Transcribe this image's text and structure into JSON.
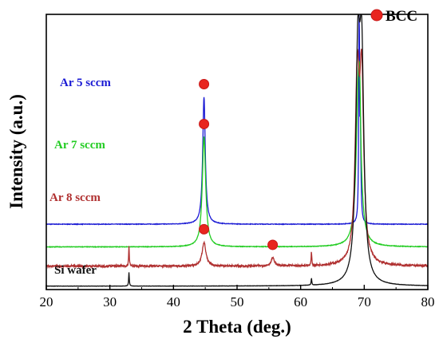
{
  "chart_data": {
    "type": "line",
    "title": "",
    "xlabel": "2 Theta (deg.)",
    "ylabel": "Intensity (a.u.)",
    "xlim": [
      20,
      80
    ],
    "xticks": [
      "20",
      "30",
      "40",
      "50",
      "60",
      "70",
      "80"
    ],
    "y_ticks_shown": false,
    "grid": false,
    "legend": {
      "marker": "red-circle",
      "label": "BCC",
      "placement": "top-right"
    },
    "colors": {
      "marker": "#e8251f",
      "marker_edge": "#c81818"
    },
    "series": [
      {
        "name": "Ar 5 sccm",
        "color": "#1a1ad4",
        "baseline": 0.95,
        "noise": 0.004,
        "peaks": [
          {
            "x": 44.8,
            "h": 1.85,
            "w": 0.24
          },
          {
            "x": 69.2,
            "h": 3.3,
            "w": 0.07
          },
          {
            "x": 69.4,
            "h": 1.2,
            "w": 0.1
          }
        ],
        "bcc_markers": [
          44.8
        ]
      },
      {
        "name": "Ar 7 sccm",
        "color": "#22cc22",
        "baseline": 0.62,
        "noise": 0.004,
        "peaks": [
          {
            "x": 44.8,
            "h": 1.6,
            "w": 0.32
          },
          {
            "x": 69.1,
            "h": 2.4,
            "w": 0.42
          },
          {
            "x": 69.3,
            "h": 0.6,
            "w": 0.15
          }
        ],
        "bcc_markers": [
          44.8
        ]
      },
      {
        "name": "Ar 8 sccm",
        "color": "#b03030",
        "baseline": 0.34,
        "noise": 0.015,
        "peaks": [
          {
            "x": 33.0,
            "h": 0.3,
            "w": 0.06
          },
          {
            "x": 44.8,
            "h": 0.35,
            "w": 0.35
          },
          {
            "x": 55.6,
            "h": 0.12,
            "w": 0.3
          },
          {
            "x": 61.7,
            "h": 0.2,
            "w": 0.06
          },
          {
            "x": 68.9,
            "h": 2.55,
            "w": 0.38
          },
          {
            "x": 69.6,
            "h": 2.55,
            "w": 0.38
          }
        ],
        "bcc_markers": [
          44.8,
          55.6
        ]
      },
      {
        "name": "Si wafer",
        "color": "#111111",
        "baseline": 0.05,
        "noise": 0.002,
        "peaks": [
          {
            "x": 33.0,
            "h": 0.2,
            "w": 0.06
          },
          {
            "x": 61.7,
            "h": 0.1,
            "w": 0.06
          },
          {
            "x": 69.0,
            "h": 3.0,
            "w": 0.4
          },
          {
            "x": 69.6,
            "h": 3.0,
            "w": 0.4
          }
        ],
        "bcc_markers": []
      }
    ]
  }
}
